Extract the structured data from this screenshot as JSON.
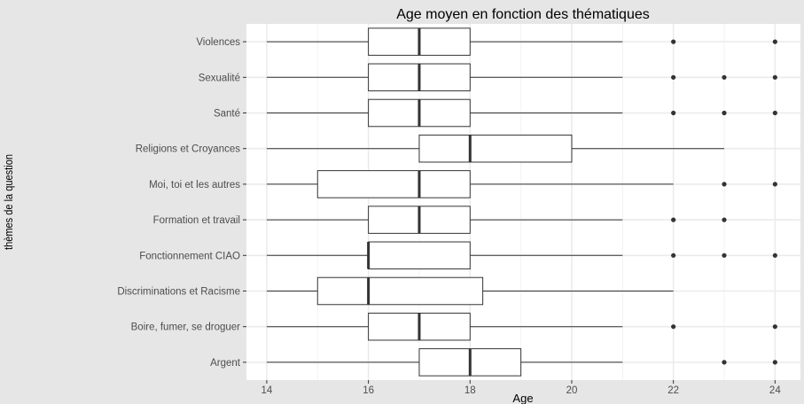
{
  "chart_data": {
    "type": "boxplot",
    "orientation": "horizontal",
    "title": "Age moyen en fonction des thématiques",
    "xlabel": "Age",
    "ylabel": "thèmes de la question",
    "xlim": [
      13.6,
      24.5
    ],
    "xticks": [
      14,
      16,
      18,
      20,
      22,
      24
    ],
    "grid": true,
    "legend": "none",
    "colors": {
      "plot_background": "#ffffff",
      "page_background": "#e6e6e6",
      "grid": "#ebebeb",
      "box_fill": "#ffffff",
      "box_stroke": "#333333",
      "median": "#333333",
      "outlier": "#333333"
    },
    "categories": [
      "Violences",
      "Sexualité",
      "Santé",
      "Religions et Croyances",
      "Moi, toi et les autres",
      "Formation et travail",
      "Fonctionnement CIAO",
      "Discriminations et Racisme",
      "Boire, fumer, se droguer",
      "Argent"
    ],
    "boxes": [
      {
        "category": "Violences",
        "min": 14,
        "q1": 16,
        "median": 17,
        "q3": 18,
        "max": 21,
        "outliers": [
          22,
          24
        ]
      },
      {
        "category": "Sexualité",
        "min": 14,
        "q1": 16,
        "median": 17,
        "q3": 18,
        "max": 21,
        "outliers": [
          22,
          23,
          24
        ]
      },
      {
        "category": "Santé",
        "min": 14,
        "q1": 16,
        "median": 17,
        "q3": 18,
        "max": 21,
        "outliers": [
          22,
          23,
          24
        ]
      },
      {
        "category": "Religions et Croyances",
        "min": 14,
        "q1": 17,
        "median": 18,
        "q3": 20,
        "max": 23,
        "outliers": []
      },
      {
        "category": "Moi, toi et les autres",
        "min": 14,
        "q1": 15,
        "median": 17,
        "q3": 18,
        "max": 22,
        "outliers": [
          23,
          24
        ]
      },
      {
        "category": "Formation et travail",
        "min": 14,
        "q1": 16,
        "median": 17,
        "q3": 18,
        "max": 21,
        "outliers": [
          22,
          23
        ]
      },
      {
        "category": "Fonctionnement CIAO",
        "min": 14,
        "q1": 16,
        "median": 16,
        "q3": 18,
        "max": 21,
        "outliers": [
          22,
          23,
          24
        ]
      },
      {
        "category": "Discriminations et Racisme",
        "min": 14,
        "q1": 15,
        "median": 16,
        "q3": 18.25,
        "max": 22,
        "outliers": []
      },
      {
        "category": "Boire, fumer, se droguer",
        "min": 14,
        "q1": 16,
        "median": 17,
        "q3": 18,
        "max": 21,
        "outliers": [
          22,
          24
        ]
      },
      {
        "category": "Argent",
        "min": 14,
        "q1": 17,
        "median": 18,
        "q3": 19,
        "max": 21,
        "outliers": [
          23,
          24
        ]
      }
    ]
  }
}
